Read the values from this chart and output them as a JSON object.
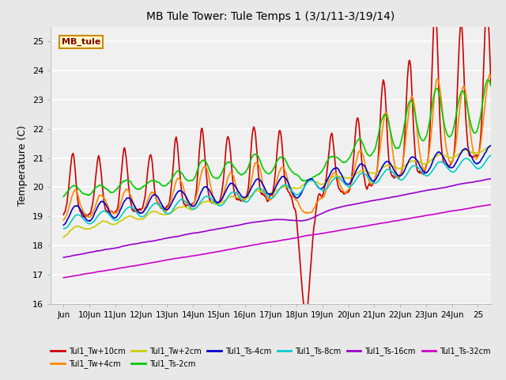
{
  "title": "MB Tule Tower: Tule Temps 1 (3/1/11-3/19/14)",
  "ylabel": "Temperature (C)",
  "xlim": [
    -0.5,
    16.5
  ],
  "ylim": [
    16.0,
    25.5
  ],
  "yticks": [
    16.0,
    17.0,
    18.0,
    19.0,
    20.0,
    21.0,
    22.0,
    23.0,
    24.0,
    25.0
  ],
  "xtick_labels": [
    "Jun",
    "10Jun",
    "11Jun",
    "12Jun",
    "13Jun",
    "14Jun",
    "15Jun",
    "16Jun",
    "17Jun",
    "18Jun",
    "19Jun",
    "20Jun",
    "21Jun",
    "22Jun",
    "23Jun",
    "24Jun",
    "25"
  ],
  "xtick_positions": [
    0,
    1,
    2,
    3,
    4,
    5,
    6,
    7,
    8,
    9,
    10,
    11,
    12,
    13,
    14,
    15,
    16
  ],
  "n_points": 800,
  "series": [
    {
      "label": "Tul1_Tw+10cm",
      "color": "#cc0000",
      "lw": 1.2
    },
    {
      "label": "Tul1_Tw+4cm",
      "color": "#ff8800",
      "lw": 1.2
    },
    {
      "label": "Tul1_Tw+2cm",
      "color": "#cccc00",
      "lw": 1.2
    },
    {
      "label": "Tul1_Ts-2cm",
      "color": "#00cc00",
      "lw": 1.2
    },
    {
      "label": "Tul1_Ts-4cm",
      "color": "#0000cc",
      "lw": 1.2
    },
    {
      "label": "Tul1_Ts-8cm",
      "color": "#00cccc",
      "lw": 1.2
    },
    {
      "label": "Tul1_Ts-16cm",
      "color": "#9900cc",
      "lw": 1.2
    },
    {
      "label": "Tul1_Ts-32cm",
      "color": "#cc00cc",
      "lw": 1.2
    }
  ],
  "bg_color": "#e8e8e8",
  "plot_bg_color": "#f0f0f0",
  "grid_color": "#ffffff",
  "label_box_facecolor": "#ffffcc",
  "label_box_edgecolor": "#cc8800",
  "label_box_text": "MB_tule",
  "label_box_text_color": "#880000",
  "figsize": [
    6.4,
    4.8
  ],
  "dpi": 100
}
